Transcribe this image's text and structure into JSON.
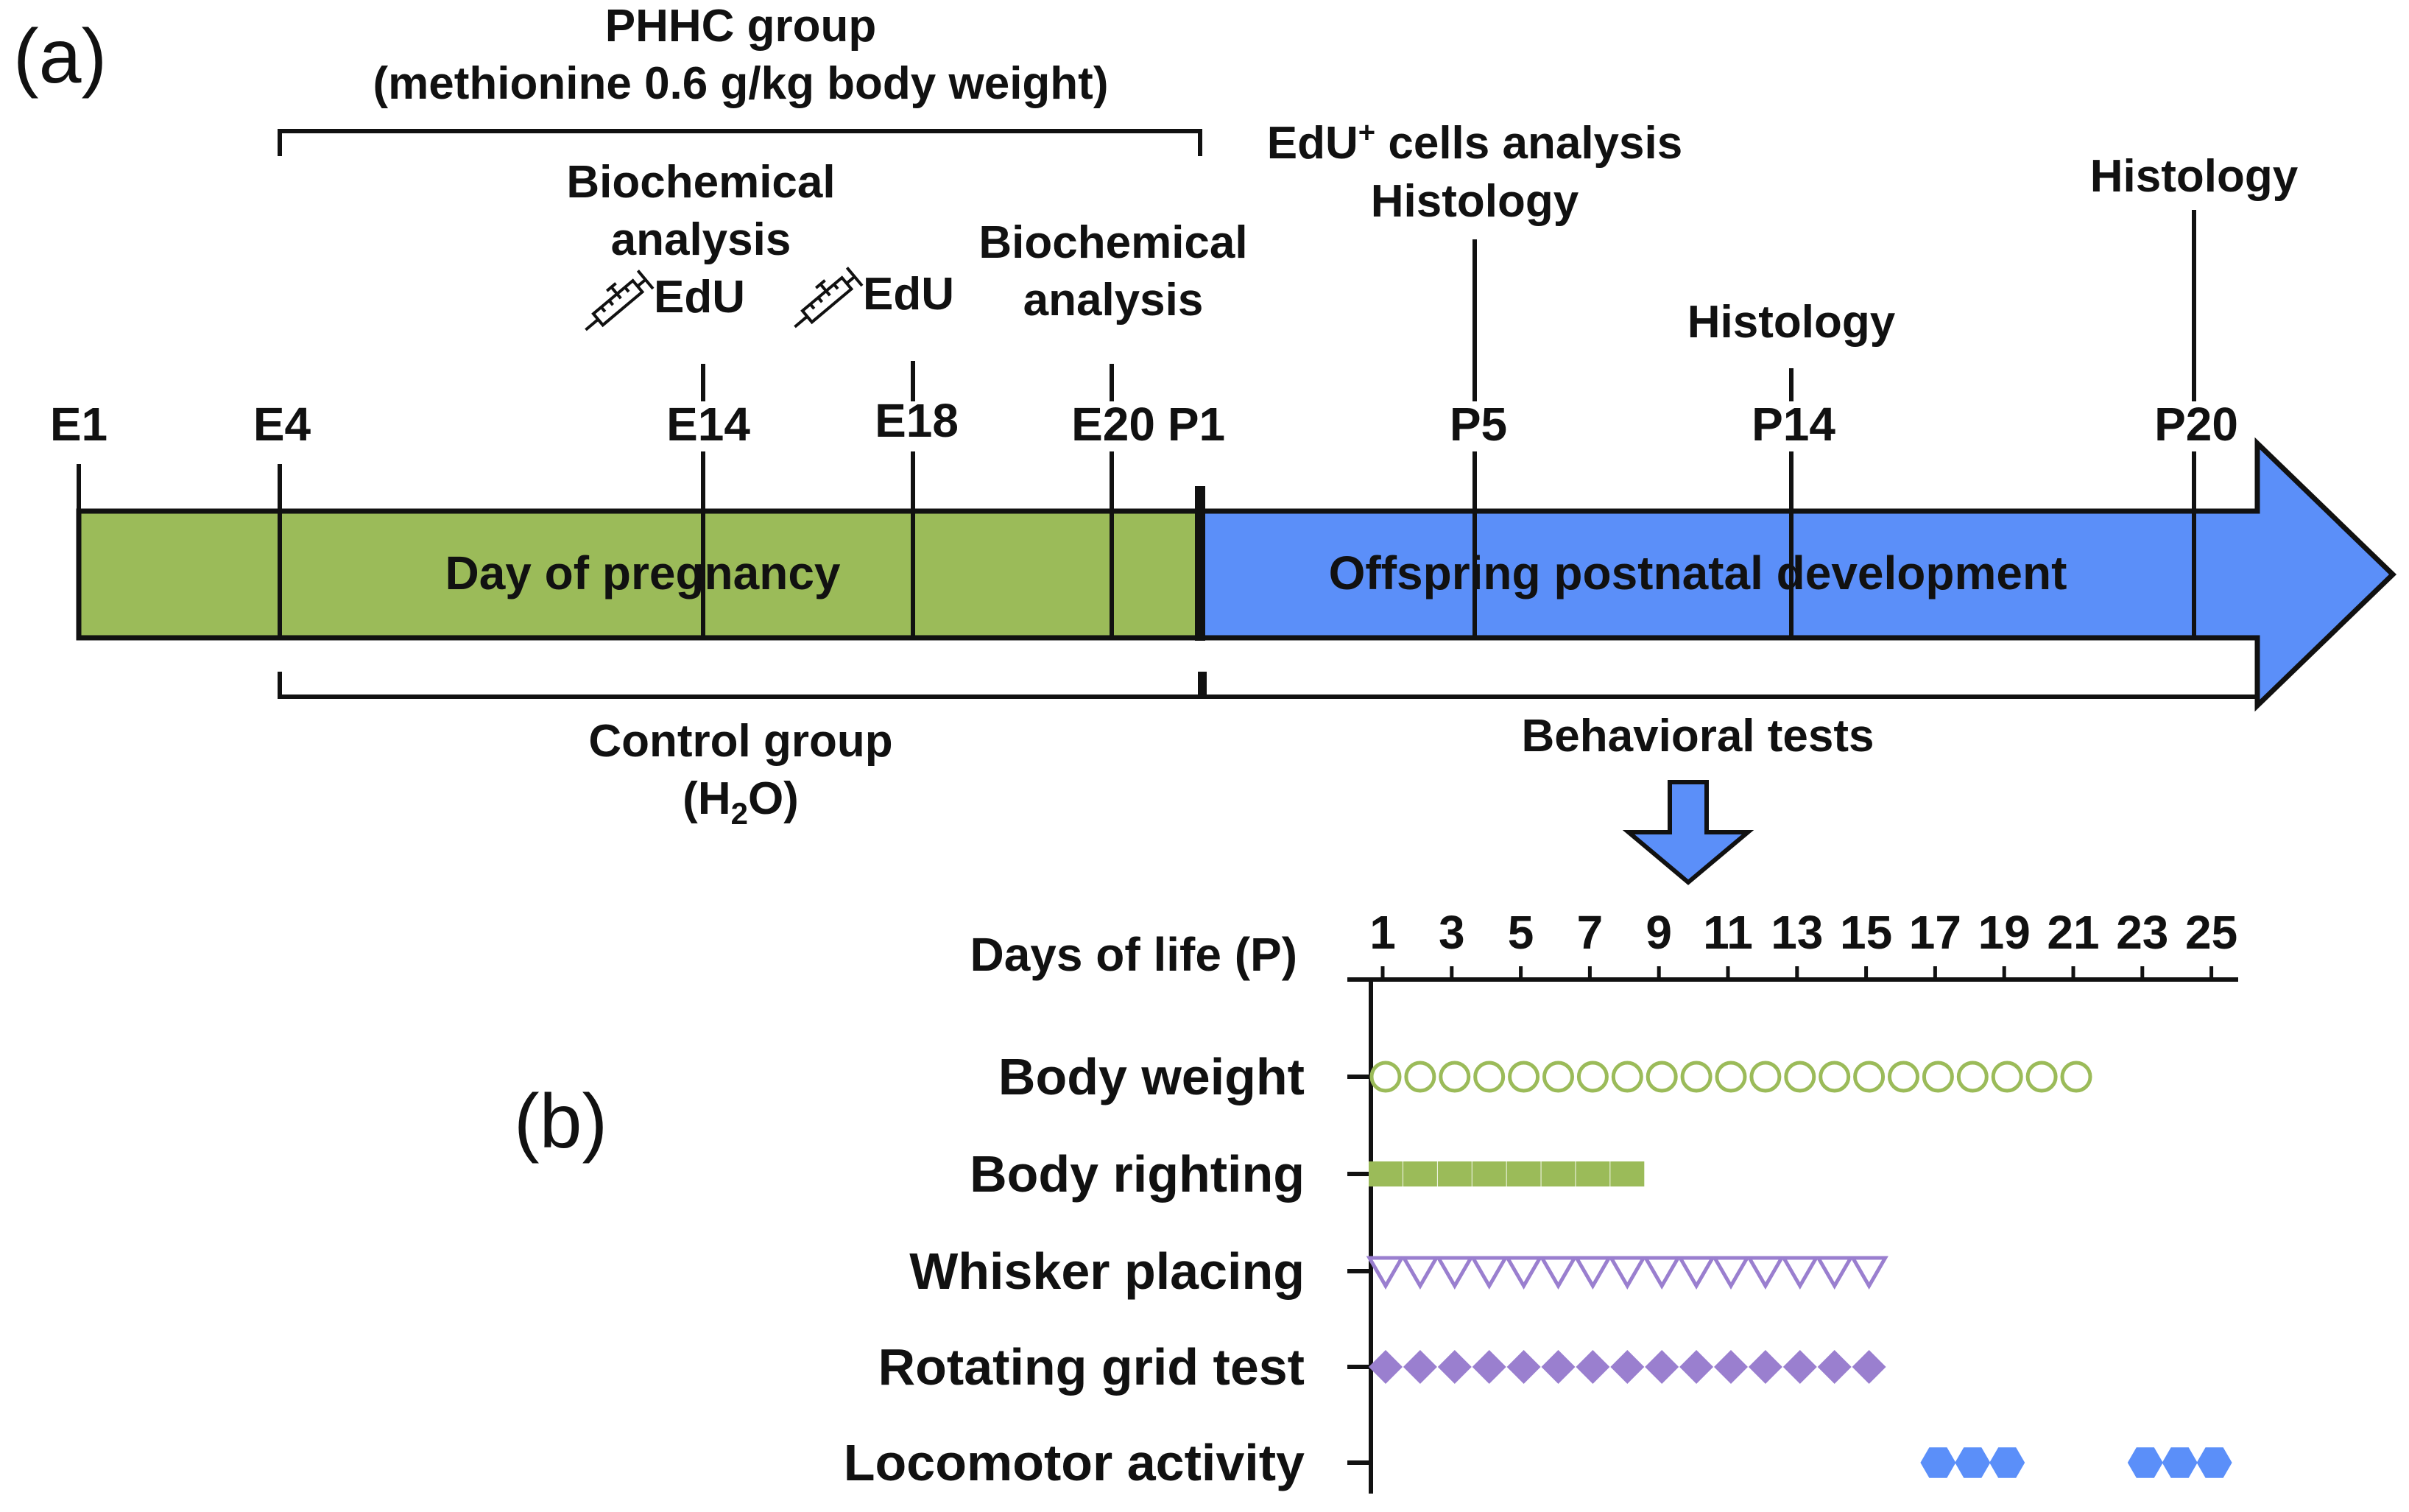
{
  "panel_labels": {
    "a": "(a)",
    "b": "(b)"
  },
  "colors": {
    "pregnancy": "#9bbb59",
    "postnatal": "#5b8ff9",
    "body_weight": "#9bbb59",
    "body_righting": "#9bbb59",
    "whisker": "#9a7fcf",
    "rotating": "#9a7fcf",
    "locomotor": "#5b8ff9"
  },
  "timeline": {
    "pregnancy_label": "Day of pregnancy",
    "postnatal_label": "Offspring postnatal development",
    "ticks": [
      {
        "label": "E1"
      },
      {
        "label": "E4"
      },
      {
        "label": "E14"
      },
      {
        "label": "E18"
      },
      {
        "label": "E20"
      },
      {
        "label": "P1"
      },
      {
        "label": "P5"
      },
      {
        "label": "P14"
      },
      {
        "label": "P20"
      }
    ],
    "phhc": {
      "line1": "PHHC group",
      "line2": "(methionine 0.6 g/kg body weight)"
    },
    "control": {
      "line1": "Control group",
      "line2_pre": "(H",
      "line2_sub": "2",
      "line2_post": "O)"
    },
    "behavioral": "Behavioral tests",
    "annotations": {
      "biochem1_line1": "Biochemical",
      "biochem1_line2": "analysis",
      "edu1": "EdU",
      "edu2": "EdU",
      "biochem2_line1": "Biochemical",
      "biochem2_line2": "analysis",
      "edu_cells_pre": "EdU",
      "edu_cells_sup": "+",
      "edu_cells_post": " cells analysis",
      "histology_p5": "Histology",
      "histology_p14": "Histology",
      "histology_p20": "Histology",
      "syringe1": "syringe-icon",
      "syringe2": "syringe-icon"
    }
  },
  "chart_data": {
    "type": "scatter",
    "title": "",
    "xlabel": "Days of life (P)",
    "x_ticks": [
      1,
      3,
      5,
      7,
      9,
      11,
      13,
      15,
      17,
      19,
      21,
      23,
      25
    ],
    "xlim": [
      1,
      25
    ],
    "series": [
      {
        "name": "Body weight",
        "marker": "open-circle",
        "days": [
          1,
          2,
          3,
          4,
          5,
          6,
          7,
          8,
          9,
          10,
          11,
          12,
          13,
          14,
          15,
          16,
          17,
          18,
          19,
          20,
          21
        ]
      },
      {
        "name": "Body righting",
        "marker": "filled-square",
        "days": [
          1,
          2,
          3,
          4,
          5,
          6,
          7,
          8
        ]
      },
      {
        "name": "Whisker placing",
        "marker": "open-triangle-down",
        "days": [
          1,
          2,
          3,
          4,
          5,
          6,
          7,
          8,
          9,
          10,
          11,
          12,
          13,
          14,
          15
        ]
      },
      {
        "name": "Rotating grid test",
        "marker": "filled-diamond",
        "days": [
          1,
          2,
          3,
          4,
          5,
          6,
          7,
          8,
          9,
          10,
          11,
          12,
          13,
          14,
          15
        ]
      },
      {
        "name": "Locomotor activity",
        "marker": "filled-hexagon",
        "days": [
          17,
          18,
          19,
          23,
          24,
          25
        ]
      }
    ]
  }
}
